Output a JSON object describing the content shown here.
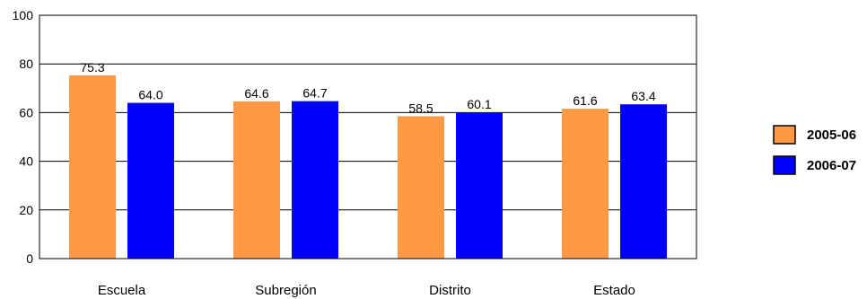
{
  "chart_data": {
    "type": "bar",
    "categories": [
      "Escuela",
      "Subregión",
      "Distrito",
      "Estado"
    ],
    "series": [
      {
        "name": "2005-06",
        "values": [
          75.3,
          64.6,
          58.5,
          61.6
        ],
        "color": "#FF9944",
        "labels": [
          "75.3",
          "64.6",
          "58.5",
          "61.6"
        ]
      },
      {
        "name": "2006-07",
        "values": [
          64.0,
          64.7,
          60.1,
          63.4
        ],
        "color": "#0000FF",
        "labels": [
          "64.0",
          "64.7",
          "60.1",
          "63.4"
        ]
      }
    ],
    "ylim": [
      0,
      100
    ],
    "yticks": [
      0,
      20,
      40,
      60,
      80,
      100
    ],
    "ytick_labels": [
      "0",
      "20",
      "40",
      "60",
      "80",
      "100"
    ],
    "grid": true,
    "legend_position": "right",
    "title": "",
    "xlabel": "",
    "ylabel": ""
  }
}
